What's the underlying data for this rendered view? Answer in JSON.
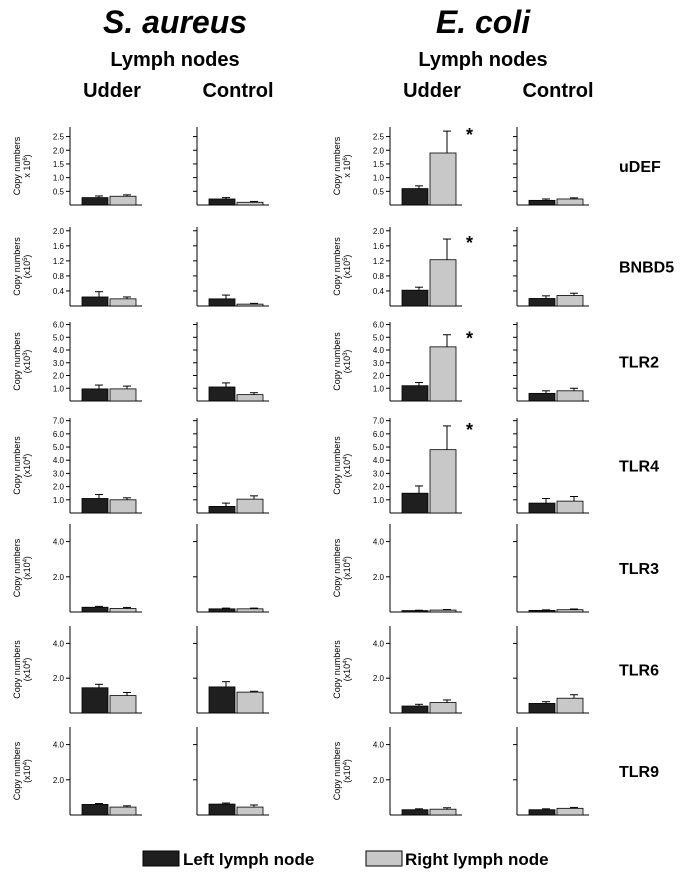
{
  "header": {
    "organisms": [
      "S. aureus",
      "E. coli"
    ],
    "sub": "Lymph nodes",
    "columns": [
      "Udder",
      "Control"
    ]
  },
  "legend": {
    "left_label": "Left lymph node",
    "right_label": "Right lymph node",
    "left_color": "#1f1f1f",
    "right_color": "#c8c8c8"
  },
  "colors": {
    "left": "#1f1f1f",
    "right": "#c8c8c8",
    "axis": "#000000"
  },
  "chart_data": {
    "type": "bar",
    "panel_columns": [
      "S. aureus Udder",
      "S. aureus Control",
      "E. coli Udder",
      "E. coli Control"
    ],
    "series_names": [
      "Left lymph node",
      "Right lymph node"
    ],
    "rows": [
      {
        "gene": "uDEF",
        "ylabel": [
          "Copy numbers",
          "x 10",
          "6",
          ")"
        ],
        "ylim": [
          0,
          2.85
        ],
        "ticks": [
          "0.5",
          "1.0",
          "1.5",
          "2.0",
          "2.5"
        ],
        "tick_values": [
          0.5,
          1.0,
          1.5,
          2.0,
          2.5
        ],
        "panels": [
          {
            "left": 0.27,
            "left_err": 0.06,
            "right": 0.32,
            "right_err": 0.05,
            "sig": false
          },
          {
            "left": 0.22,
            "left_err": 0.05,
            "right": 0.1,
            "right_err": 0.03,
            "sig": false
          },
          {
            "left": 0.6,
            "left_err": 0.1,
            "right": 1.9,
            "right_err": 0.8,
            "sig": true
          },
          {
            "left": 0.17,
            "left_err": 0.05,
            "right": 0.22,
            "right_err": 0.04,
            "sig": false
          }
        ]
      },
      {
        "gene": "BNBD5",
        "ylabel": [
          "Copy numbers",
          "(x10",
          "5",
          ")"
        ],
        "ylim": [
          0,
          2.1
        ],
        "ticks": [
          "0.4",
          "0.8",
          "1.2",
          "1.6",
          "2.0"
        ],
        "tick_values": [
          0.4,
          0.8,
          1.2,
          1.6,
          2.0
        ],
        "panels": [
          {
            "left": 0.24,
            "left_err": 0.14,
            "right": 0.19,
            "right_err": 0.05,
            "sig": false
          },
          {
            "left": 0.19,
            "left_err": 0.1,
            "right": 0.05,
            "right_err": 0.02,
            "sig": false
          },
          {
            "left": 0.42,
            "left_err": 0.08,
            "right": 1.23,
            "right_err": 0.55,
            "sig": true
          },
          {
            "left": 0.2,
            "left_err": 0.07,
            "right": 0.28,
            "right_err": 0.06,
            "sig": false
          }
        ]
      },
      {
        "gene": "TLR2",
        "ylabel": [
          "Copy numbers",
          "(x10",
          "3",
          ")"
        ],
        "ylim": [
          0,
          6.2
        ],
        "ticks": [
          "1.0",
          "2.0",
          "3.0",
          "4.0",
          "5.0",
          "6.0"
        ],
        "tick_values": [
          1.0,
          2.0,
          3.0,
          4.0,
          5.0,
          6.0
        ],
        "panels": [
          {
            "left": 0.95,
            "left_err": 0.3,
            "right": 0.95,
            "right_err": 0.22,
            "sig": false
          },
          {
            "left": 1.1,
            "left_err": 0.32,
            "right": 0.5,
            "right_err": 0.15,
            "sig": false
          },
          {
            "left": 1.2,
            "left_err": 0.25,
            "right": 4.25,
            "right_err": 0.95,
            "sig": true
          },
          {
            "left": 0.6,
            "left_err": 0.2,
            "right": 0.8,
            "right_err": 0.2,
            "sig": false
          }
        ]
      },
      {
        "gene": "TLR4",
        "ylabel": [
          "Copy numbers",
          "(x10",
          "4",
          ")"
        ],
        "ylim": [
          0,
          7.2
        ],
        "ticks": [
          "1.0",
          "2.0",
          "3.0",
          "4.0",
          "5.0",
          "6.0",
          "7.0"
        ],
        "tick_values": [
          1.0,
          2.0,
          3.0,
          4.0,
          5.0,
          6.0,
          7.0
        ],
        "panels": [
          {
            "left": 1.1,
            "left_err": 0.3,
            "right": 1.0,
            "right_err": 0.15,
            "sig": false
          },
          {
            "left": 0.5,
            "left_err": 0.25,
            "right": 1.05,
            "right_err": 0.25,
            "sig": false
          },
          {
            "left": 1.5,
            "left_err": 0.55,
            "right": 4.8,
            "right_err": 1.8,
            "sig": true
          },
          {
            "left": 0.75,
            "left_err": 0.35,
            "right": 0.9,
            "right_err": 0.35,
            "sig": false
          }
        ]
      },
      {
        "gene": "TLR3",
        "ylabel": [
          "Copy numbers",
          "(x10",
          "4",
          ")"
        ],
        "ylim": [
          0,
          5.0
        ],
        "ticks": [
          "2.0",
          "4.0"
        ],
        "tick_values": [
          2.0,
          4.0
        ],
        "panels": [
          {
            "left": 0.27,
            "left_err": 0.05,
            "right": 0.2,
            "right_err": 0.06,
            "sig": false
          },
          {
            "left": 0.18,
            "left_err": 0.04,
            "right": 0.18,
            "right_err": 0.04,
            "sig": false
          },
          {
            "left": 0.08,
            "left_err": 0.02,
            "right": 0.11,
            "right_err": 0.03,
            "sig": false
          },
          {
            "left": 0.09,
            "left_err": 0.03,
            "right": 0.13,
            "right_err": 0.04,
            "sig": false
          }
        ]
      },
      {
        "gene": "TLR6",
        "ylabel": [
          "Copy numbers",
          "(x10",
          "4",
          ")"
        ],
        "ylim": [
          0,
          5.0
        ],
        "ticks": [
          "2.0",
          "4.0"
        ],
        "tick_values": [
          2.0,
          4.0
        ],
        "panels": [
          {
            "left": 1.45,
            "left_err": 0.2,
            "right": 1.0,
            "right_err": 0.18,
            "sig": false
          },
          {
            "left": 1.5,
            "left_err": 0.3,
            "right": 1.2,
            "right_err": 0.05,
            "sig": false
          },
          {
            "left": 0.4,
            "left_err": 0.1,
            "right": 0.6,
            "right_err": 0.15,
            "sig": false
          },
          {
            "left": 0.55,
            "left_err": 0.1,
            "right": 0.85,
            "right_err": 0.2,
            "sig": false
          }
        ]
      },
      {
        "gene": "TLR9",
        "ylabel": [
          "Copy numbers",
          "(x10",
          "4",
          ")"
        ],
        "ylim": [
          0,
          5.0
        ],
        "ticks": [
          "2.0",
          "4.0"
        ],
        "tick_values": [
          2.0,
          4.0
        ],
        "panels": [
          {
            "left": 0.6,
            "left_err": 0.05,
            "right": 0.45,
            "right_err": 0.07,
            "sig": false
          },
          {
            "left": 0.62,
            "left_err": 0.06,
            "right": 0.45,
            "right_err": 0.12,
            "sig": false
          },
          {
            "left": 0.3,
            "left_err": 0.05,
            "right": 0.33,
            "right_err": 0.08,
            "sig": false
          },
          {
            "left": 0.3,
            "left_err": 0.05,
            "right": 0.38,
            "right_err": 0.05,
            "sig": false
          }
        ]
      }
    ],
    "significance_marker": "*"
  }
}
